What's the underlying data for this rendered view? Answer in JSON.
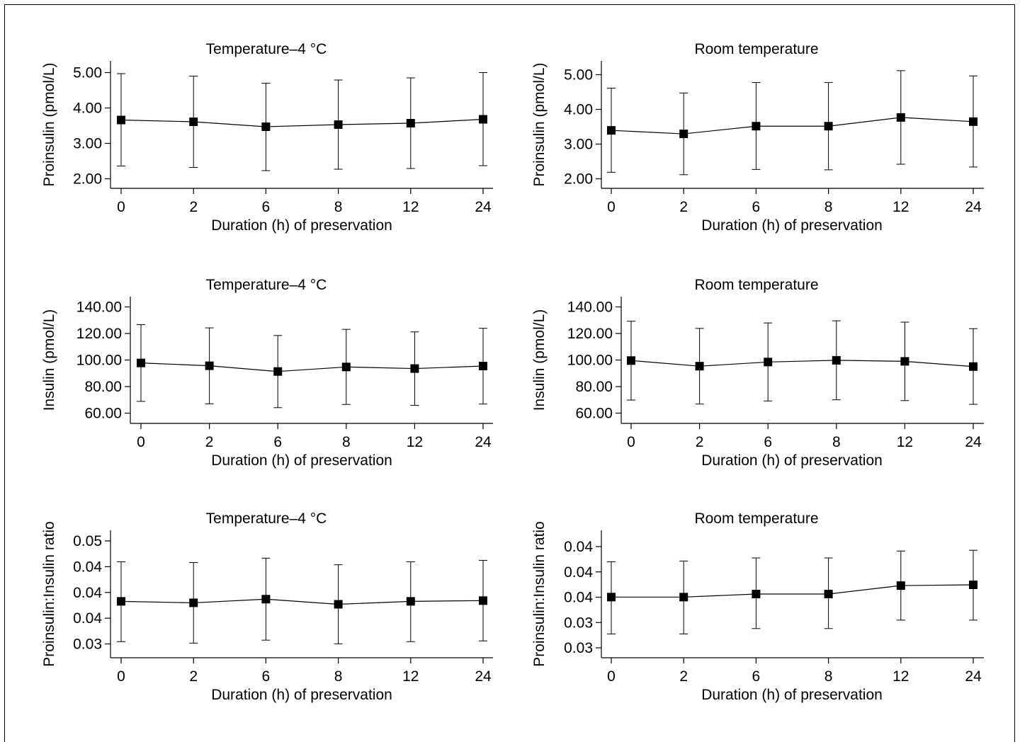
{
  "chart_data": [
    {
      "type": "line",
      "title": "Temperature–4 °C",
      "xlabel": "Duration (h) of preservation",
      "ylabel": "Proinsulin (pmol/L)",
      "categories": [
        "0",
        "2",
        "6",
        "8",
        "12",
        "24"
      ],
      "yticks": [
        "2.00",
        "3.00",
        "4.00",
        "5.00"
      ],
      "ylim": [
        1.7,
        5.3
      ],
      "values": [
        3.63,
        3.58,
        3.44,
        3.5,
        3.54,
        3.65
      ],
      "err_low": [
        2.33,
        2.29,
        2.2,
        2.24,
        2.26,
        2.34
      ],
      "err_high": [
        4.94,
        4.87,
        4.67,
        4.76,
        4.82,
        4.97
      ]
    },
    {
      "type": "line",
      "title": "Room temperature",
      "xlabel": "Duration (h) of preservation",
      "ylabel": "Proinsulin (pmol/L)",
      "categories": [
        "0",
        "2",
        "6",
        "8",
        "12",
        "24"
      ],
      "yticks": [
        "2.00",
        "3.00",
        "4.00",
        "5.00"
      ],
      "ylim": [
        1.7,
        5.35
      ],
      "values": [
        3.36,
        3.26,
        3.48,
        3.48,
        3.73,
        3.61
      ],
      "err_low": [
        2.16,
        2.09,
        2.24,
        2.23,
        2.39,
        2.31
      ],
      "err_high": [
        4.57,
        4.43,
        4.73,
        4.73,
        5.07,
        4.92
      ]
    },
    {
      "type": "line",
      "title": "Temperature–4 °C",
      "xlabel": "Duration (h) of preservation",
      "ylabel": "Insulin (pmol/L)",
      "categories": [
        "0",
        "2",
        "6",
        "8",
        "12",
        "24"
      ],
      "yticks": [
        "60.00",
        "80.00",
        "100.00",
        "120.00",
        "140.00"
      ],
      "ylim": [
        52,
        147
      ],
      "values": [
        97.3,
        95.2,
        90.9,
        94.3,
        93.1,
        95.0
      ],
      "err_low": [
        68.5,
        66.7,
        63.8,
        66.2,
        65.5,
        66.5
      ],
      "err_high": [
        126.0,
        123.6,
        117.9,
        122.5,
        120.6,
        123.3
      ]
    },
    {
      "type": "line",
      "title": "Room temperature",
      "xlabel": "Duration (h) of preservation",
      "ylabel": "Insulin (pmol/L)",
      "categories": [
        "0",
        "2",
        "6",
        "8",
        "12",
        "24"
      ],
      "yticks": [
        "60.00",
        "80.00",
        "100.00",
        "120.00",
        "140.00"
      ],
      "ylim": [
        52,
        147
      ],
      "values": [
        99.1,
        94.9,
        98.0,
        99.3,
        98.5,
        94.6
      ],
      "err_low": [
        69.5,
        66.5,
        68.8,
        69.7,
        69.1,
        66.3
      ],
      "err_high": [
        128.6,
        123.2,
        127.3,
        128.9,
        127.9,
        123.0
      ]
    },
    {
      "type": "line",
      "title": "Temperature–4 °C",
      "xlabel": "Duration (h) of preservation",
      "ylabel": "Proinsulin:Insulin ratio",
      "categories": [
        "0",
        "2",
        "6",
        "8",
        "12",
        "24"
      ],
      "yticks": [
        "0.03",
        "0.04",
        "0.04",
        "0.04",
        "0.05"
      ],
      "ylim": [
        0.0298,
        0.0472
      ],
      "values": [
        0.0375,
        0.0373,
        0.0378,
        0.0371,
        0.0375,
        0.0376
      ],
      "err_low": [
        0.032,
        0.0318,
        0.0322,
        0.0317,
        0.032,
        0.0321
      ],
      "err_high": [
        0.0429,
        0.0428,
        0.0434,
        0.0425,
        0.0429,
        0.0431
      ]
    },
    {
      "type": "line",
      "title": "Room temperature",
      "xlabel": "Duration (h) of preservation",
      "ylabel": "Proinsulin:Insulin ratio",
      "categories": [
        "0",
        "2",
        "6",
        "8",
        "12",
        "24"
      ],
      "yticks": [
        "0.03",
        "0.03",
        "0.04",
        "0.04",
        "0.04"
      ],
      "ylim": [
        0.0273,
        0.0439
      ],
      "values": [
        0.0352,
        0.0352,
        0.0356,
        0.0356,
        0.0367,
        0.0368
      ],
      "err_low": [
        0.0304,
        0.0304,
        0.0311,
        0.0311,
        0.0322,
        0.0322
      ],
      "err_high": [
        0.0398,
        0.0399,
        0.0403,
        0.0403,
        0.0412,
        0.0413
      ]
    }
  ]
}
